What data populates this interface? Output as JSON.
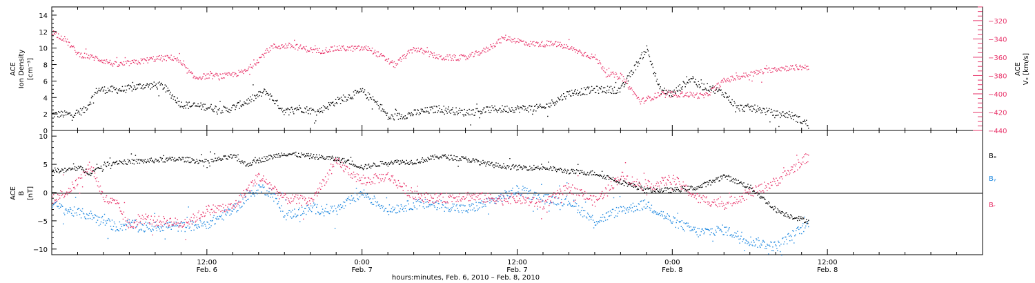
{
  "colors": {
    "black": "#000000",
    "red": "#e8346a",
    "blue": "#1e88e0"
  },
  "chart_data": [
    {
      "type": "scatter",
      "panel": "top",
      "ylabel_lines": [
        "ACE",
        "Ion Density",
        "[cm⁻³]"
      ],
      "ylim": [
        0,
        15
      ],
      "yticks": [
        0,
        2,
        4,
        6,
        8,
        10,
        12,
        14
      ],
      "right_ylabel_lines": [
        "ACE",
        "Vₓ [km/s]"
      ],
      "right_ylim": [
        -440,
        -305
      ],
      "right_yticks": [
        -440,
        -420,
        -400,
        -380,
        -360,
        -340,
        -320
      ],
      "xlim_hours": [
        0,
        72
      ],
      "data_span_hours": [
        0,
        58.5
      ],
      "series": [
        {
          "axis": "left",
          "color": "black",
          "x": [
            0,
            1.5,
            2.5,
            3.5,
            4.5,
            5.5,
            7,
            8.5,
            10,
            12,
            13.5,
            15,
            16.5,
            18,
            19,
            20.5,
            22,
            24,
            25.5,
            26,
            27,
            28.5,
            30,
            32,
            34,
            36,
            38,
            40,
            42,
            44,
            46,
            47,
            48,
            49.5,
            50,
            51,
            52,
            53,
            54,
            55,
            56,
            57,
            58.5
          ],
          "y": [
            2,
            2,
            2.5,
            5,
            5,
            5,
            5.5,
            5.5,
            3.2,
            2.9,
            2.5,
            3.5,
            4.8,
            2.3,
            2.8,
            2.3,
            3.6,
            4.8,
            2.8,
            1.6,
            1.8,
            2.3,
            2.7,
            2.2,
            2.6,
            2.7,
            2.8,
            4.6,
            5,
            5,
            10,
            5,
            4.5,
            6.5,
            5.5,
            5.2,
            4.5,
            2.8,
            2.8,
            2.5,
            2,
            2,
            0.8
          ]
        },
        {
          "axis": "right",
          "color": "red",
          "x": [
            0,
            1,
            2,
            3.5,
            5,
            6.5,
            8,
            9.5,
            11,
            12,
            13.5,
            15,
            17,
            18.5,
            20.5,
            22,
            24.5,
            26.5,
            28,
            30,
            32,
            33.5,
            35,
            37,
            39,
            40.5,
            42,
            43,
            44,
            45.5,
            47,
            49,
            50.5,
            52,
            54,
            56,
            58.5
          ],
          "y": [
            -332,
            -340,
            -356,
            -361,
            -368,
            -365,
            -361,
            -360,
            -382,
            -380,
            -380,
            -375,
            -348,
            -347,
            -353,
            -350,
            -350,
            -368,
            -350,
            -360,
            -360,
            -352,
            -338,
            -345,
            -345,
            -352,
            -360,
            -378,
            -380,
            -408,
            -400,
            -400,
            -402,
            -385,
            -378,
            -372,
            -370
          ]
        }
      ]
    },
    {
      "type": "scatter",
      "panel": "bottom",
      "ylabel_lines": [
        "ACE",
        "B",
        "[nT]"
      ],
      "ylim": [
        -11,
        11
      ],
      "yticks": [
        -10,
        -5,
        0,
        5,
        10
      ],
      "xlim_hours": [
        0,
        72
      ],
      "data_span_hours": [
        0,
        58.5
      ],
      "series": [
        {
          "name": "Bₓ",
          "color": "black",
          "x": [
            0,
            1,
            2,
            3,
            4,
            5,
            6,
            8,
            10,
            12,
            14,
            15,
            16,
            18,
            20,
            22,
            23,
            24,
            26,
            28,
            30,
            32,
            34,
            36,
            38,
            40,
            42,
            44,
            46,
            48,
            50,
            52,
            53,
            54,
            55,
            56,
            57,
            58.5
          ],
          "y": [
            4,
            4,
            4.5,
            3.5,
            5,
            5.5,
            5.5,
            5.8,
            6,
            5.5,
            6.5,
            5,
            5.8,
            7,
            6.5,
            6,
            5.5,
            4.5,
            5.5,
            5.5,
            6.5,
            6,
            5,
            4.5,
            4.5,
            3.8,
            3.5,
            2,
            0.5,
            0.5,
            1,
            3,
            2,
            1,
            -1,
            -3,
            -4,
            -5
          ]
        },
        {
          "name": "Bᵧ",
          "color": "blue",
          "x": [
            0,
            1,
            2,
            3,
            4,
            5,
            6,
            7,
            8,
            9,
            10,
            12,
            14,
            15,
            16,
            17,
            18,
            20,
            22,
            24,
            26,
            28,
            30,
            32,
            34,
            36,
            38,
            40,
            42,
            44,
            46,
            48,
            50,
            52,
            54,
            56,
            58.5
          ],
          "y": [
            -2,
            -3,
            -3.5,
            -4,
            -5,
            -6,
            -5.5,
            -6,
            -6,
            -5.8,
            -6,
            -5.5,
            -3,
            -1,
            1,
            0,
            -4,
            -2.8,
            -3,
            0,
            -3,
            -2,
            -2,
            -3,
            -1.5,
            0.5,
            -1,
            -1.5,
            -5,
            -3,
            -2,
            -5,
            -7,
            -6.5,
            -8.5,
            -9.5,
            -5.5
          ]
        },
        {
          "name": "Bᵣ",
          "color": "red",
          "x": [
            0,
            1,
            2,
            3,
            4,
            5,
            6,
            7,
            8,
            9,
            10,
            11,
            12,
            14,
            16,
            18,
            20,
            22,
            24,
            26,
            28,
            30,
            32,
            34,
            36,
            38,
            40,
            42,
            44,
            46,
            48,
            50,
            52,
            54,
            56,
            58.5
          ],
          "y": [
            -1,
            0,
            2,
            5,
            -1,
            -2,
            -6,
            -4.5,
            -5,
            -5,
            -5.5,
            -4.5,
            -3,
            -2.5,
            3,
            -1,
            -1.5,
            5.5,
            2,
            3,
            -0.5,
            -1,
            -0.5,
            -1,
            -1,
            -2,
            1,
            -1.5,
            3,
            1,
            2.5,
            -1,
            -2,
            0,
            2,
            6.5
          ]
        }
      ]
    }
  ],
  "legend": {
    "bx": "Bₓ",
    "by": "Bᵧ",
    "bz": "Bᵣ"
  },
  "x_axis": {
    "tick_labels": [
      {
        "hour": 12,
        "time": "12:00",
        "date": "Feb. 6"
      },
      {
        "hour": 24,
        "time": "0:00",
        "date": "Feb. 7"
      },
      {
        "hour": 36,
        "time": "12:00",
        "date": "Feb. 7"
      },
      {
        "hour": 48,
        "time": "0:00",
        "date": "Feb. 8"
      },
      {
        "hour": 60,
        "time": "12:00",
        "date": "Feb. 8"
      }
    ],
    "title": "hours:minutes, Feb.  6, 2010 – Feb.  8, 2010"
  }
}
